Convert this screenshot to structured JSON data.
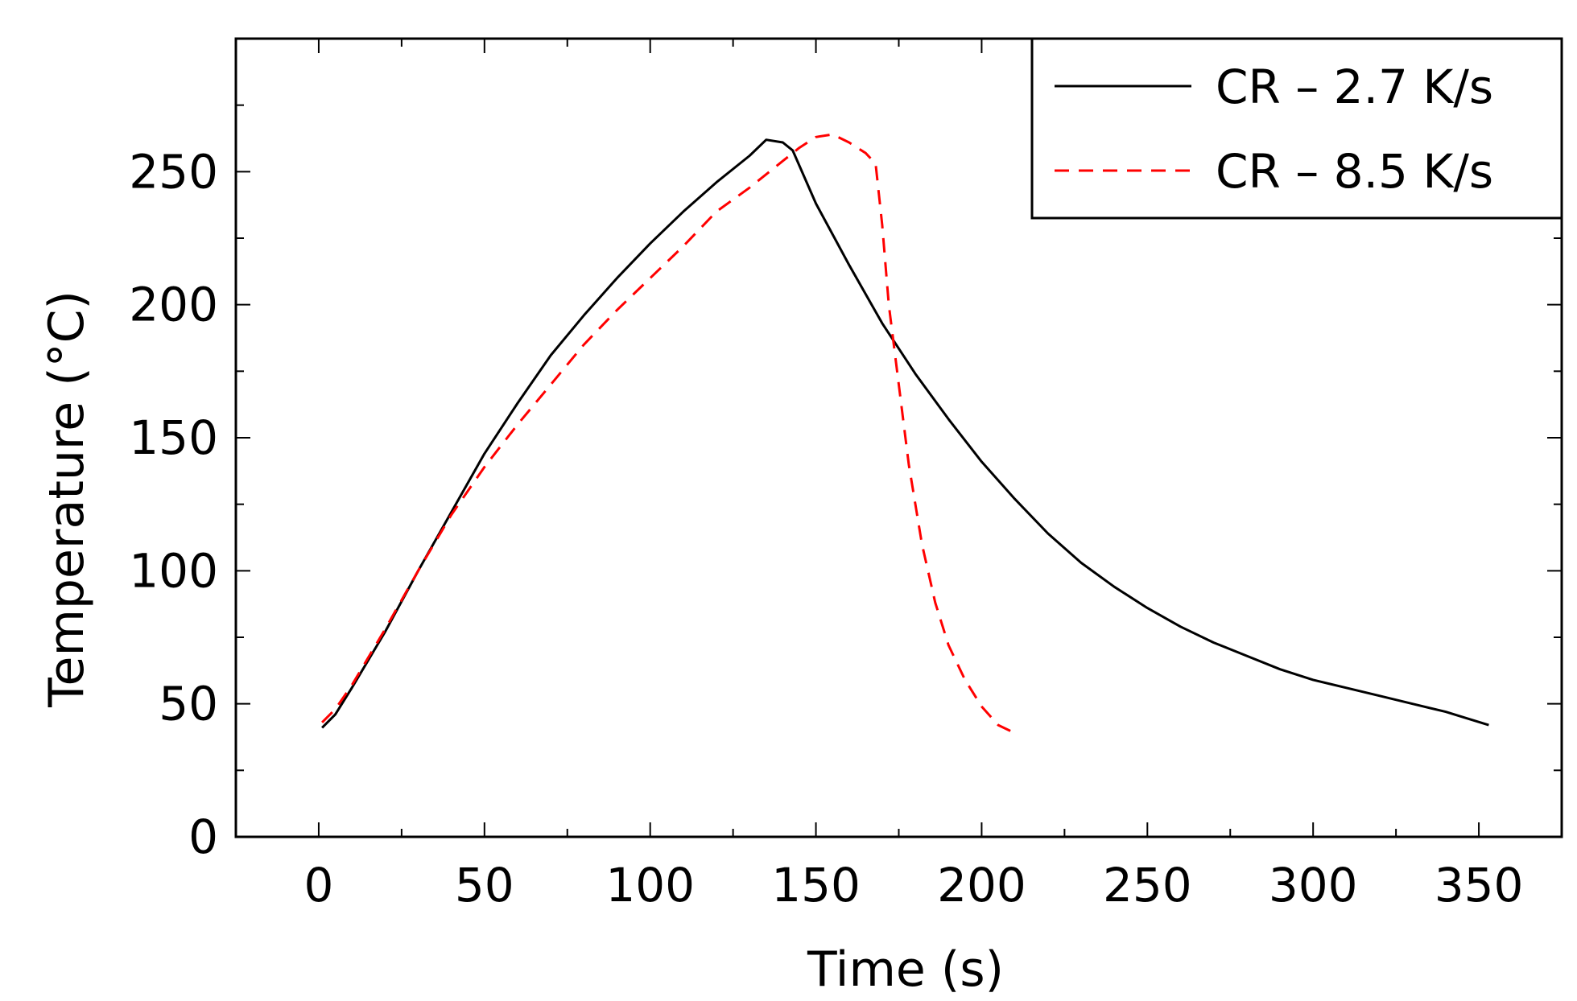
{
  "chart_data": {
    "type": "line",
    "title": "",
    "xlabel": "Time (s)",
    "ylabel": "Temperature (°C)",
    "xlim": [
      -25,
      375
    ],
    "ylim": [
      0,
      300
    ],
    "xticks": [
      0,
      50,
      100,
      150,
      200,
      250,
      300,
      350
    ],
    "yticks": [
      0,
      50,
      100,
      150,
      200,
      250
    ],
    "x_minor_step": 25,
    "y_minor_step": 25,
    "legend_position": "top-right",
    "series": [
      {
        "name": "CR – 2.7 K/s",
        "color": "#000000",
        "style": "solid",
        "points": [
          [
            1,
            41
          ],
          [
            5,
            46
          ],
          [
            10,
            56
          ],
          [
            20,
            77
          ],
          [
            30,
            100
          ],
          [
            40,
            122
          ],
          [
            50,
            144
          ],
          [
            60,
            163
          ],
          [
            70,
            181
          ],
          [
            80,
            196
          ],
          [
            90,
            210
          ],
          [
            100,
            223
          ],
          [
            110,
            235
          ],
          [
            120,
            246
          ],
          [
            130,
            256
          ],
          [
            135,
            262
          ],
          [
            140,
            261
          ],
          [
            143,
            258
          ],
          [
            150,
            238
          ],
          [
            160,
            215
          ],
          [
            170,
            193
          ],
          [
            180,
            174
          ],
          [
            190,
            157
          ],
          [
            200,
            141
          ],
          [
            210,
            127
          ],
          [
            220,
            114
          ],
          [
            230,
            103
          ],
          [
            240,
            94
          ],
          [
            250,
            86
          ],
          [
            260,
            79
          ],
          [
            270,
            73
          ],
          [
            280,
            68
          ],
          [
            290,
            63
          ],
          [
            300,
            59
          ],
          [
            310,
            56
          ],
          [
            320,
            53
          ],
          [
            330,
            50
          ],
          [
            340,
            47
          ],
          [
            353,
            42
          ]
        ]
      },
      {
        "name": "CR – 8.5 K/s",
        "color": "#ff0000",
        "style": "dashed",
        "points": [
          [
            1,
            43
          ],
          [
            5,
            48
          ],
          [
            10,
            57
          ],
          [
            20,
            78
          ],
          [
            30,
            100
          ],
          [
            40,
            121
          ],
          [
            50,
            139
          ],
          [
            60,
            155
          ],
          [
            70,
            170
          ],
          [
            80,
            185
          ],
          [
            90,
            198
          ],
          [
            100,
            210
          ],
          [
            110,
            222
          ],
          [
            120,
            235
          ],
          [
            130,
            244
          ],
          [
            140,
            254
          ],
          [
            145,
            259
          ],
          [
            150,
            263
          ],
          [
            155,
            264
          ],
          [
            160,
            261
          ],
          [
            165,
            257
          ],
          [
            168,
            253
          ],
          [
            170,
            230
          ],
          [
            172,
            200
          ],
          [
            175,
            170
          ],
          [
            178,
            140
          ],
          [
            182,
            110
          ],
          [
            186,
            88
          ],
          [
            190,
            72
          ],
          [
            195,
            59
          ],
          [
            200,
            49
          ],
          [
            205,
            42
          ],
          [
            210,
            39
          ]
        ]
      }
    ]
  }
}
